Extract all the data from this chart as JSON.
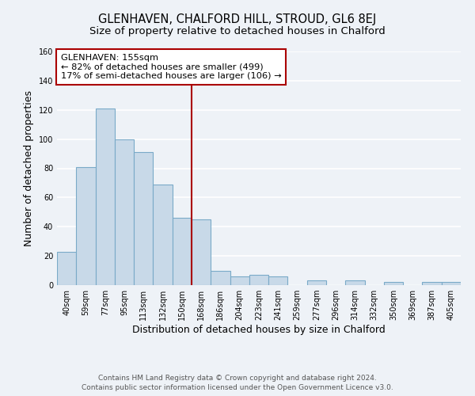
{
  "title": "GLENHAVEN, CHALFORD HILL, STROUD, GL6 8EJ",
  "subtitle": "Size of property relative to detached houses in Chalford",
  "xlabel": "Distribution of detached houses by size in Chalford",
  "ylabel": "Number of detached properties",
  "bar_labels": [
    "40sqm",
    "59sqm",
    "77sqm",
    "95sqm",
    "113sqm",
    "132sqm",
    "150sqm",
    "168sqm",
    "186sqm",
    "204sqm",
    "223sqm",
    "241sqm",
    "259sqm",
    "277sqm",
    "296sqm",
    "314sqm",
    "332sqm",
    "350sqm",
    "369sqm",
    "387sqm",
    "405sqm"
  ],
  "bar_values": [
    23,
    81,
    121,
    100,
    91,
    69,
    46,
    45,
    10,
    6,
    7,
    6,
    0,
    3,
    0,
    3,
    0,
    2,
    0,
    2,
    2
  ],
  "bar_color": "#c8d9e8",
  "bar_edge_color": "#7aaac8",
  "annotation_line_color": "#aa0000",
  "annotation_box_text": "GLENHAVEN: 155sqm\n← 82% of detached houses are smaller (499)\n17% of semi-detached houses are larger (106) →",
  "ylim": [
    0,
    160
  ],
  "yticks": [
    0,
    20,
    40,
    60,
    80,
    100,
    120,
    140,
    160
  ],
  "footer_line1": "Contains HM Land Registry data © Crown copyright and database right 2024.",
  "footer_line2": "Contains public sector information licensed under the Open Government Licence v3.0.",
  "bg_color": "#eef2f7",
  "title_fontsize": 10.5,
  "subtitle_fontsize": 9.5,
  "tick_fontsize": 7,
  "label_fontsize": 9,
  "footer_fontsize": 6.5
}
